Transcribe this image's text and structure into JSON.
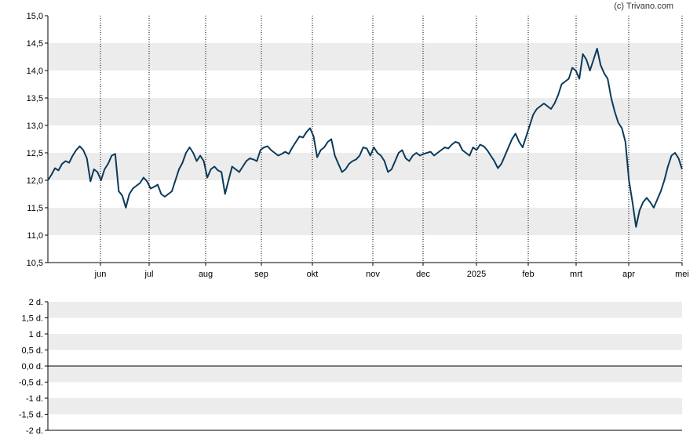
{
  "source": "(c) Trivano.com",
  "colors": {
    "line": "#0b3a5a",
    "band": "#ececec",
    "axis": "#000000",
    "grid": "#000000"
  },
  "chart_data": [
    {
      "type": "line",
      "title": "",
      "xlabel": "",
      "ylabel": "",
      "ylim": [
        10.5,
        15.0
      ],
      "y_ticks": [
        "10,5",
        "11,0",
        "11,5",
        "12,0",
        "12,5",
        "13,0",
        "13,5",
        "14,0",
        "14,5",
        "15,0"
      ],
      "x_tick_labels": [
        "jun",
        "jul",
        "aug",
        "sep",
        "okt",
        "nov",
        "dec",
        "2025",
        "feb",
        "mrt",
        "apr",
        "mei"
      ],
      "grid": "vertical dotted at month starts, alternating horizontal bands",
      "series": [
        {
          "values": [
            12.0,
            12.1,
            12.22,
            12.18,
            12.3,
            12.35,
            12.32,
            12.45,
            12.55,
            12.62,
            12.55,
            12.4,
            11.98,
            12.2,
            12.15,
            12.0,
            12.2,
            12.3,
            12.45,
            12.48,
            11.8,
            11.72,
            11.5,
            11.75,
            11.85,
            11.9,
            11.95,
            12.05,
            11.98,
            11.85,
            11.88,
            11.92,
            11.75,
            11.7,
            11.75,
            11.8,
            12.0,
            12.2,
            12.32,
            12.5,
            12.6,
            12.5,
            12.35,
            12.45,
            12.35,
            12.05,
            12.2,
            12.25,
            12.18,
            12.15,
            11.75,
            12.0,
            12.25,
            12.2,
            12.15,
            12.25,
            12.35,
            12.4,
            12.38,
            12.35,
            12.55,
            12.6,
            12.62,
            12.55,
            12.5,
            12.45,
            12.48,
            12.52,
            12.48,
            12.6,
            12.7,
            12.8,
            12.78,
            12.88,
            12.95,
            12.8,
            12.42,
            12.55,
            12.6,
            12.7,
            12.75,
            12.45,
            12.3,
            12.15,
            12.2,
            12.3,
            12.35,
            12.38,
            12.45,
            12.6,
            12.58,
            12.45,
            12.6,
            12.5,
            12.45,
            12.35,
            12.15,
            12.2,
            12.35,
            12.5,
            12.55,
            12.4,
            12.35,
            12.45,
            12.5,
            12.45,
            12.48,
            12.5,
            12.52,
            12.45,
            12.5,
            12.55,
            12.6,
            12.58,
            12.65,
            12.7,
            12.68,
            12.55,
            12.5,
            12.45,
            12.6,
            12.55,
            12.65,
            12.62,
            12.55,
            12.45,
            12.35,
            12.22,
            12.3,
            12.45,
            12.6,
            12.75,
            12.85,
            12.7,
            12.6,
            12.8,
            13.0,
            13.2,
            13.3,
            13.35,
            13.4,
            13.35,
            13.3,
            13.4,
            13.55,
            13.75,
            13.8,
            13.85,
            14.05,
            14.0,
            13.85,
            14.3,
            14.2,
            14.0,
            14.2,
            14.4,
            14.1,
            13.95,
            13.85,
            13.5,
            13.25,
            13.05,
            12.95,
            12.7,
            12.0,
            11.6,
            11.15,
            11.45,
            11.6,
            11.68,
            11.6,
            11.5,
            11.65,
            11.8,
            12.0,
            12.25,
            12.45,
            12.5,
            12.4,
            12.2
          ]
        }
      ]
    },
    {
      "type": "line",
      "title": "",
      "xlabel": "",
      "ylabel": "",
      "ylim": [
        -2,
        2
      ],
      "y_ticks": [
        "-2 d.",
        "-1,5 d.",
        "-1 d.",
        "-0,5 d.",
        "0,0 d.",
        "0,5 d.",
        "1 d.",
        "1,5 d.",
        "2 d."
      ],
      "series": []
    }
  ]
}
